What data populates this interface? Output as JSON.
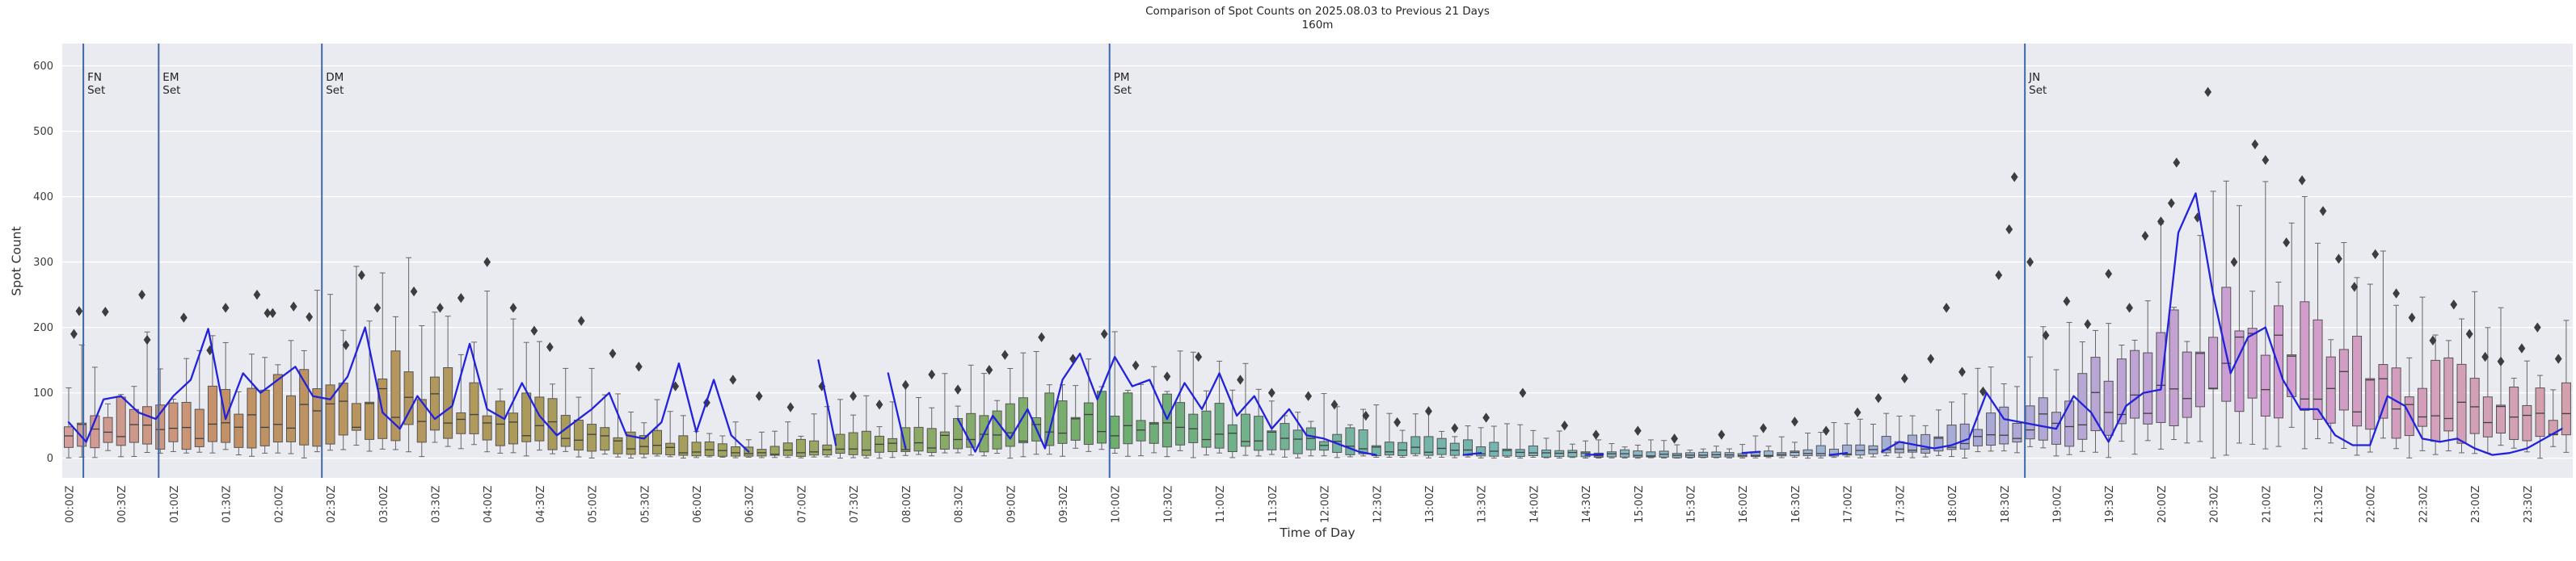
{
  "title": {
    "line1": "Comparison of Spot Counts on 2025.08.03 to Previous 21 Days",
    "line2": "160m"
  },
  "axes": {
    "x_label": "Time of Day",
    "y_label": "Spot Count",
    "y_ticks": [
      0,
      100,
      200,
      300,
      400,
      500,
      600
    ],
    "x_ticks": [
      "00:00Z",
      "00:30Z",
      "01:00Z",
      "01:30Z",
      "02:00Z",
      "02:30Z",
      "03:00Z",
      "03:30Z",
      "04:00Z",
      "04:30Z",
      "05:00Z",
      "05:30Z",
      "06:00Z",
      "06:30Z",
      "07:00Z",
      "07:30Z",
      "08:00Z",
      "08:30Z",
      "09:00Z",
      "09:30Z",
      "10:00Z",
      "10:30Z",
      "11:00Z",
      "11:30Z",
      "12:00Z",
      "12:30Z",
      "13:00Z",
      "13:30Z",
      "14:00Z",
      "14:30Z",
      "15:00Z",
      "15:30Z",
      "16:00Z",
      "16:30Z",
      "17:00Z",
      "17:30Z",
      "18:00Z",
      "18:30Z",
      "19:00Z",
      "19:30Z",
      "20:00Z",
      "20:30Z",
      "21:00Z",
      "21:30Z",
      "22:00Z",
      "22:30Z",
      "23:00Z",
      "23:30Z"
    ]
  },
  "set_markers": [
    {
      "abbr": "FN",
      "word": "Set",
      "hour": 0.14
    },
    {
      "abbr": "EM",
      "word": "Set",
      "hour": 0.86
    },
    {
      "abbr": "DM",
      "word": "Set",
      "hour": 2.42
    },
    {
      "abbr": "PM",
      "word": "Set",
      "hour": 9.95
    },
    {
      "abbr": "JN",
      "word": "Set",
      "hour": 18.7
    }
  ],
  "colors": {
    "plot_bg": "#eaeaf1",
    "grid": "#ffffff",
    "box_edge": "#555555",
    "median_line": "#3f3f3f",
    "whisker": "#666666",
    "outlier": "#3d3d3d",
    "current_day_line": "#2222dd",
    "set_line": "#3e68a8",
    "title_text": "#262626",
    "tick_text": "#3a3a3a",
    "box_hue_stops": [
      [
        0,
        2,
        38,
        72
      ],
      [
        1,
        20,
        45,
        64
      ],
      [
        1.5,
        28,
        43,
        58
      ],
      [
        3,
        38,
        38,
        54
      ],
      [
        4.5,
        48,
        32,
        51
      ],
      [
        6,
        58,
        28,
        50
      ],
      [
        7.5,
        75,
        28,
        52
      ],
      [
        9,
        100,
        28,
        55
      ],
      [
        10.5,
        130,
        28,
        56
      ],
      [
        12,
        160,
        30,
        58
      ],
      [
        13.5,
        175,
        30,
        58
      ],
      [
        15,
        195,
        35,
        66
      ],
      [
        16.5,
        212,
        38,
        72
      ],
      [
        18,
        235,
        38,
        75
      ],
      [
        19,
        255,
        36,
        75
      ],
      [
        20,
        278,
        35,
        73
      ],
      [
        21,
        300,
        36,
        72
      ],
      [
        22,
        320,
        38,
        72
      ],
      [
        23,
        335,
        38,
        73
      ],
      [
        24,
        345,
        38,
        73
      ]
    ]
  },
  "chart_data": {
    "type": "boxplot+line",
    "title": "Comparison of Spot Counts on 2025.08.03 to Previous 21 Days",
    "subtitle": "160m",
    "xlabel": "Time of Day",
    "ylabel": "Spot Count",
    "ylim": [
      -30,
      634
    ],
    "xlim_hours": [
      -0.07,
      23.95
    ],
    "grid": "horizontal-only",
    "legend": "none",
    "bin_minutes": 7.5,
    "bins": 192,
    "box_distribution_of": "Previous 21 Days",
    "line_series_name": "2025.08.03 spot counts",
    "envelope_step_hours": 0.5,
    "envelope": {
      "median": [
        45,
        40,
        45,
        50,
        55,
        65,
        80,
        75,
        60,
        45,
        30,
        18,
        10,
        8,
        10,
        14,
        18,
        28,
        40,
        48,
        50,
        45,
        38,
        30,
        22,
        16,
        12,
        10,
        8,
        6,
        5,
        4,
        5,
        7,
        10,
        16,
        25,
        40,
        55,
        80,
        110,
        140,
        145,
        120,
        95,
        80,
        70,
        60,
        55
      ],
      "q1": [
        20,
        18,
        20,
        22,
        25,
        30,
        40,
        35,
        28,
        20,
        12,
        8,
        4,
        3,
        4,
        6,
        8,
        12,
        18,
        22,
        24,
        20,
        16,
        12,
        9,
        6,
        5,
        4,
        3,
        2,
        2,
        1,
        2,
        3,
        4,
        7,
        11,
        18,
        25,
        40,
        60,
        80,
        85,
        65,
        50,
        40,
        35,
        30,
        28
      ],
      "q3": [
        75,
        70,
        80,
        85,
        95,
        110,
        130,
        120,
        100,
        80,
        55,
        35,
        22,
        18,
        22,
        30,
        38,
        52,
        68,
        78,
        80,
        72,
        62,
        50,
        40,
        30,
        24,
        20,
        15,
        12,
        10,
        8,
        10,
        14,
        20,
        30,
        45,
        65,
        90,
        125,
        165,
        200,
        210,
        175,
        140,
        120,
        105,
        95,
        90
      ],
      "whisker_hi": [
        140,
        130,
        150,
        160,
        180,
        200,
        230,
        215,
        185,
        150,
        110,
        75,
        50,
        45,
        55,
        70,
        85,
        105,
        130,
        145,
        150,
        135,
        120,
        100,
        85,
        65,
        55,
        45,
        35,
        28,
        22,
        18,
        24,
        32,
        45,
        65,
        90,
        125,
        160,
        210,
        260,
        310,
        330,
        290,
        240,
        210,
        185,
        170,
        160
      ]
    },
    "current_day_line": {
      "step_minutes": 10,
      "values": [
        55,
        25,
        90,
        95,
        70,
        60,
        95,
        120,
        198,
        60,
        130,
        100,
        120,
        140,
        95,
        90,
        125,
        200,
        70,
        45,
        95,
        60,
        80,
        175,
        75,
        60,
        115,
        65,
        35,
        55,
        75,
        100,
        35,
        30,
        55,
        145,
        40,
        120,
        35,
        10,
        null,
        null,
        null,
        150,
        20,
        null,
        null,
        130,
        15,
        null,
        null,
        60,
        10,
        65,
        30,
        75,
        15,
        120,
        160,
        90,
        155,
        110,
        120,
        60,
        115,
        75,
        130,
        65,
        95,
        45,
        75,
        35,
        30,
        20,
        10,
        5,
        null,
        null,
        null,
        null,
        5,
        8,
        null,
        null,
        null,
        null,
        null,
        5,
        6,
        null,
        null,
        null,
        null,
        null,
        null,
        null,
        8,
        10,
        null,
        null,
        null,
        5,
        8,
        null,
        10,
        25,
        20,
        15,
        20,
        30,
        100,
        60,
        55,
        50,
        45,
        95,
        70,
        25,
        80,
        100,
        105,
        345,
        405,
        250,
        130,
        185,
        200,
        120,
        75,
        75,
        35,
        20,
        20,
        95,
        80,
        30,
        25,
        30,
        15,
        5,
        8,
        15,
        30,
        45
      ]
    },
    "outliers_hour_value": [
      [
        0.05,
        190
      ],
      [
        0.1,
        225
      ],
      [
        0.35,
        224
      ],
      [
        0.7,
        250
      ],
      [
        0.75,
        181
      ],
      [
        1.1,
        215
      ],
      [
        1.35,
        165
      ],
      [
        1.5,
        230
      ],
      [
        1.8,
        250
      ],
      [
        1.9,
        222
      ],
      [
        1.95,
        222
      ],
      [
        2.15,
        232
      ],
      [
        2.3,
        216
      ],
      [
        2.65,
        173
      ],
      [
        2.8,
        280
      ],
      [
        2.95,
        230
      ],
      [
        3.3,
        255
      ],
      [
        3.55,
        230
      ],
      [
        3.75,
        245
      ],
      [
        4.0,
        300
      ],
      [
        4.25,
        230
      ],
      [
        4.45,
        195
      ],
      [
        4.6,
        170
      ],
      [
        4.9,
        210
      ],
      [
        5.2,
        160
      ],
      [
        5.45,
        140
      ],
      [
        5.8,
        110
      ],
      [
        6.1,
        85
      ],
      [
        6.35,
        120
      ],
      [
        6.6,
        95
      ],
      [
        6.9,
        78
      ],
      [
        7.2,
        110
      ],
      [
        7.5,
        95
      ],
      [
        7.75,
        82
      ],
      [
        8.0,
        112
      ],
      [
        8.25,
        128
      ],
      [
        8.5,
        105
      ],
      [
        8.8,
        135
      ],
      [
        8.95,
        158
      ],
      [
        9.3,
        185
      ],
      [
        9.6,
        152
      ],
      [
        9.9,
        190
      ],
      [
        10.2,
        142
      ],
      [
        10.5,
        125
      ],
      [
        10.8,
        155
      ],
      [
        11.2,
        120
      ],
      [
        11.5,
        100
      ],
      [
        11.85,
        95
      ],
      [
        12.1,
        82
      ],
      [
        12.4,
        65
      ],
      [
        12.7,
        55
      ],
      [
        13.0,
        72
      ],
      [
        13.25,
        46
      ],
      [
        13.55,
        62
      ],
      [
        13.9,
        100
      ],
      [
        14.3,
        50
      ],
      [
        14.6,
        36
      ],
      [
        15.0,
        42
      ],
      [
        15.35,
        30
      ],
      [
        15.8,
        36
      ],
      [
        16.2,
        46
      ],
      [
        16.5,
        56
      ],
      [
        16.8,
        42
      ],
      [
        17.1,
        70
      ],
      [
        17.3,
        92
      ],
      [
        17.55,
        122
      ],
      [
        17.8,
        152
      ],
      [
        17.95,
        230
      ],
      [
        18.1,
        132
      ],
      [
        18.3,
        102
      ],
      [
        18.45,
        280
      ],
      [
        18.55,
        350
      ],
      [
        18.6,
        430
      ],
      [
        18.75,
        300
      ],
      [
        18.9,
        188
      ],
      [
        19.1,
        240
      ],
      [
        19.3,
        205
      ],
      [
        19.5,
        282
      ],
      [
        19.7,
        230
      ],
      [
        19.85,
        340
      ],
      [
        20.0,
        362
      ],
      [
        20.1,
        390
      ],
      [
        20.15,
        452
      ],
      [
        20.35,
        368
      ],
      [
        20.45,
        560
      ],
      [
        20.7,
        300
      ],
      [
        20.9,
        480
      ],
      [
        21.0,
        456
      ],
      [
        21.2,
        330
      ],
      [
        21.35,
        425
      ],
      [
        21.55,
        378
      ],
      [
        21.7,
        305
      ],
      [
        21.85,
        262
      ],
      [
        22.05,
        312
      ],
      [
        22.25,
        252
      ],
      [
        22.4,
        215
      ],
      [
        22.6,
        180
      ],
      [
        22.8,
        235
      ],
      [
        22.95,
        190
      ],
      [
        23.1,
        155
      ],
      [
        23.25,
        148
      ],
      [
        23.45,
        168
      ],
      [
        23.6,
        200
      ],
      [
        23.8,
        152
      ]
    ]
  }
}
